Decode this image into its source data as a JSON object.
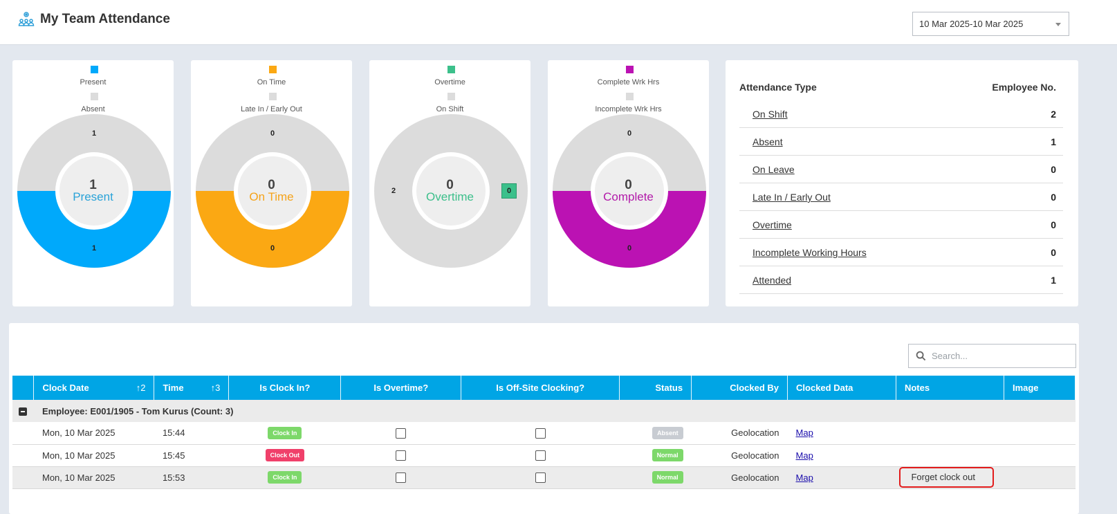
{
  "header": {
    "title": "My Team Attendance",
    "icon": "team-icon",
    "date_range": "10 Mar 2025-10 Mar 2025"
  },
  "colors": {
    "present": "#00a9fb",
    "on_time": "#fba813",
    "overtime": "#3cc08b",
    "complete": "#bb12b3",
    "inactive": "#dcdcdc",
    "header_blue": "#00a5e5"
  },
  "charts": [
    {
      "legend_primary": "Present",
      "legend_secondary": "Absent",
      "center_value": "1",
      "center_label": "Present",
      "top_value": "1",
      "bottom_value": "1",
      "fill": 0.5
    },
    {
      "legend_primary": "On Time",
      "legend_secondary": "Late In / Early Out",
      "center_value": "0",
      "center_label": "On Time",
      "top_value": "0",
      "bottom_value": "0",
      "fill": 0.5
    },
    {
      "legend_primary": "Overtime",
      "legend_secondary": "On Shift",
      "center_value": "0",
      "center_label": "Overtime",
      "left_value": "2",
      "right_value": "0",
      "fill": 0
    },
    {
      "legend_primary": "Complete Wrk Hrs",
      "legend_secondary": "Incomplete Wrk Hrs",
      "center_value": "0",
      "center_label": "Complete",
      "top_value": "0",
      "bottom_value": "0",
      "fill": 0.5
    }
  ],
  "attendance": {
    "col_type": "Attendance Type",
    "col_count": "Employee No.",
    "rows": [
      {
        "label": "On Shift",
        "value": "2"
      },
      {
        "label": "Absent",
        "value": "1"
      },
      {
        "label": "On Leave",
        "value": "0"
      },
      {
        "label": "Late In / Early Out",
        "value": "0"
      },
      {
        "label": "Overtime",
        "value": "0"
      },
      {
        "label": "Incomplete Working Hours",
        "value": "0"
      },
      {
        "label": "Attended",
        "value": "1"
      }
    ]
  },
  "grid": {
    "search_placeholder": "Search...",
    "columns": {
      "clock_date": "Clock Date",
      "clock_date_sort": "2",
      "time": "Time",
      "time_sort": "3",
      "is_clock_in": "Is Clock In?",
      "is_overtime": "Is Overtime?",
      "is_offsite": "Is Off-Site Clocking?",
      "status": "Status",
      "clocked_by": "Clocked By",
      "clocked_data": "Clocked Data",
      "notes": "Notes",
      "image": "Image"
    },
    "group_label": "Employee: E001/1905 - Tom Kurus (Count: 3)",
    "rows": [
      {
        "date": "Mon, 10 Mar 2025",
        "time": "15:44",
        "clock": "Clock In",
        "status": "Absent",
        "clocked_by": "Geolocation",
        "data": "Map",
        "notes": ""
      },
      {
        "date": "Mon, 10 Mar 2025",
        "time": "15:45",
        "clock": "Clock Out",
        "status": "Normal",
        "clocked_by": "Geolocation",
        "data": "Map",
        "notes": ""
      },
      {
        "date": "Mon, 10 Mar 2025",
        "time": "15:53",
        "clock": "Clock In",
        "status": "Normal",
        "clocked_by": "Geolocation",
        "data": "Map",
        "notes": "Forget clock out"
      }
    ]
  }
}
